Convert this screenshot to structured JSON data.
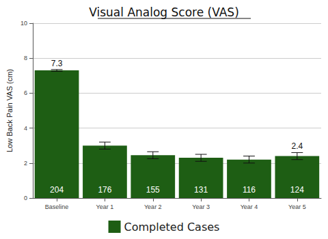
{
  "chart_data": {
    "type": "bar",
    "title": "Visual Analog Score (VAS)",
    "y_label": "Low Back Pain VAS (cm)",
    "categories": [
      "Baseline",
      "Year 1",
      "Year 2",
      "Year 3",
      "Year 4",
      "Year 5"
    ],
    "series": [
      {
        "name": "Completed Cases",
        "color": "#1e5e14",
        "values": [
          7.3,
          3.0,
          2.45,
          2.3,
          2.2,
          2.4
        ],
        "value_labels": [
          "7.3",
          null,
          null,
          null,
          null,
          "2.4"
        ],
        "errors": [
          0.05,
          0.2,
          0.2,
          0.2,
          0.2,
          0.2
        ],
        "counts": [
          204,
          176,
          155,
          131,
          116,
          124
        ]
      }
    ],
    "ylim": [
      0,
      10
    ],
    "yticks": [
      0,
      2,
      4,
      6,
      8,
      10
    ],
    "grid": true,
    "legend": "bottom"
  }
}
